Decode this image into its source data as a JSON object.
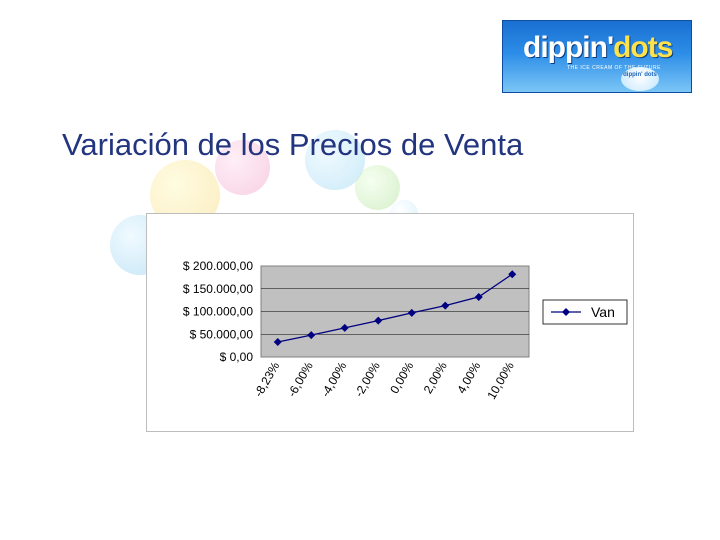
{
  "slide": {
    "title": "Variación de los Precios de Venta"
  },
  "logo": {
    "word_main": "dippin'",
    "word_accent": "dots",
    "tagline": "THE ICE CREAM OF THE FUTURE",
    "mini_badge": "dippin' dots"
  },
  "chart_data": {
    "type": "line",
    "categories": [
      "-8,23%",
      "-6,00%",
      "-4,00%",
      "-2,00%",
      "0,00%",
      "2,00%",
      "4,00%",
      "10,00%"
    ],
    "series": [
      {
        "name": "Van",
        "values": [
          33000,
          48000,
          64000,
          80000,
          97000,
          113000,
          132000,
          182000
        ],
        "color": "#000080",
        "marker": "diamond"
      }
    ],
    "y_ticks": [
      "$ 0,00",
      "$ 50.000,00",
      "$ 100.000,00",
      "$ 150.000,00",
      "$ 200.000,00"
    ],
    "ylim": [
      0,
      200000
    ],
    "y_step": 50000,
    "grid": true,
    "plot_background": "#c0c0c0",
    "legend_position": "right",
    "title": "",
    "xlabel": "",
    "ylabel": ""
  }
}
